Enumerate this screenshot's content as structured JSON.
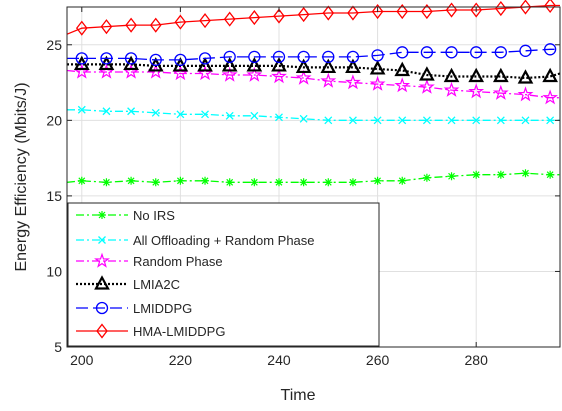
{
  "chart_data": {
    "type": "line",
    "xlabel": "Time",
    "ylabel": "Energy Efficiency (Mbits/J)",
    "xlim": [
      197,
      297
    ],
    "ylim": [
      5,
      27.5
    ],
    "xticks": [
      200,
      220,
      240,
      260,
      280
    ],
    "yticks": [
      5,
      10,
      15,
      20,
      25
    ],
    "grid": true,
    "legend_position": "bottom-left",
    "series": [
      {
        "name": "No IRS",
        "color": "#00ff00",
        "dash": "8,3,2,3",
        "marker": "star",
        "x": [
          197,
          200,
          205,
          210,
          215,
          220,
          225,
          230,
          235,
          240,
          245,
          250,
          255,
          260,
          265,
          270,
          275,
          280,
          285,
          290,
          295,
          297
        ],
        "y": [
          15.9,
          16.0,
          15.9,
          16.0,
          15.9,
          16.0,
          16.0,
          15.9,
          15.9,
          15.9,
          15.9,
          15.9,
          15.9,
          16.0,
          16.0,
          16.2,
          16.3,
          16.4,
          16.4,
          16.5,
          16.4,
          16.4
        ]
      },
      {
        "name": "All Offloading + Random Phase",
        "color": "#00ffff",
        "dash": "8,3,2,3",
        "marker": "x",
        "x": [
          197,
          200,
          205,
          210,
          215,
          220,
          225,
          230,
          235,
          240,
          245,
          250,
          255,
          260,
          265,
          270,
          275,
          280,
          285,
          290,
          295,
          297
        ],
        "y": [
          20.7,
          20.7,
          20.6,
          20.6,
          20.5,
          20.4,
          20.4,
          20.3,
          20.3,
          20.2,
          20.1,
          20.0,
          20.0,
          20.0,
          20.0,
          20.0,
          20.0,
          20.0,
          20.0,
          20.0,
          20.0,
          20.0
        ]
      },
      {
        "name": "Random Phase",
        "color": "#ff00ff",
        "dash": "8,3,2,3",
        "marker": "star5",
        "x": [
          197,
          200,
          205,
          210,
          215,
          220,
          225,
          230,
          235,
          240,
          245,
          250,
          255,
          260,
          265,
          270,
          275,
          280,
          285,
          290,
          295,
          297
        ],
        "y": [
          23.3,
          23.2,
          23.2,
          23.2,
          23.2,
          23.1,
          23.1,
          23.0,
          23.0,
          22.9,
          22.8,
          22.6,
          22.5,
          22.4,
          22.3,
          22.2,
          22.0,
          21.9,
          21.8,
          21.7,
          21.5,
          21.5
        ]
      },
      {
        "name": "LMIA2C",
        "color": "#000000",
        "dash": "2,2",
        "marker": "triangle",
        "x": [
          197,
          200,
          205,
          210,
          215,
          220,
          225,
          230,
          235,
          240,
          245,
          250,
          255,
          260,
          265,
          270,
          275,
          280,
          285,
          290,
          295,
          297
        ],
        "y": [
          23.7,
          23.7,
          23.7,
          23.7,
          23.6,
          23.6,
          23.6,
          23.6,
          23.6,
          23.6,
          23.5,
          23.5,
          23.5,
          23.4,
          23.3,
          23.0,
          22.9,
          22.9,
          22.9,
          22.8,
          22.9,
          23.1
        ]
      },
      {
        "name": "LMIDDPG",
        "color": "#0000ff",
        "dash": "12,5",
        "marker": "circle",
        "x": [
          197,
          200,
          205,
          210,
          215,
          220,
          225,
          230,
          235,
          240,
          245,
          250,
          255,
          260,
          265,
          270,
          275,
          280,
          285,
          290,
          295,
          297
        ],
        "y": [
          24.1,
          24.1,
          24.1,
          24.1,
          24.0,
          24.0,
          24.1,
          24.2,
          24.2,
          24.2,
          24.2,
          24.2,
          24.2,
          24.3,
          24.5,
          24.5,
          24.5,
          24.5,
          24.5,
          24.6,
          24.7,
          24.7
        ]
      },
      {
        "name": "HMA-LMIDDPG",
        "color": "#ff0000",
        "dash": "",
        "marker": "diamond",
        "x": [
          197,
          200,
          205,
          210,
          215,
          220,
          225,
          230,
          235,
          240,
          245,
          250,
          255,
          260,
          265,
          270,
          275,
          280,
          285,
          290,
          295,
          297
        ],
        "y": [
          25.7,
          26.1,
          26.2,
          26.3,
          26.3,
          26.5,
          26.6,
          26.7,
          26.8,
          26.9,
          27.0,
          27.1,
          27.1,
          27.2,
          27.2,
          27.2,
          27.3,
          27.3,
          27.4,
          27.5,
          27.6,
          27.6
        ]
      }
    ]
  }
}
